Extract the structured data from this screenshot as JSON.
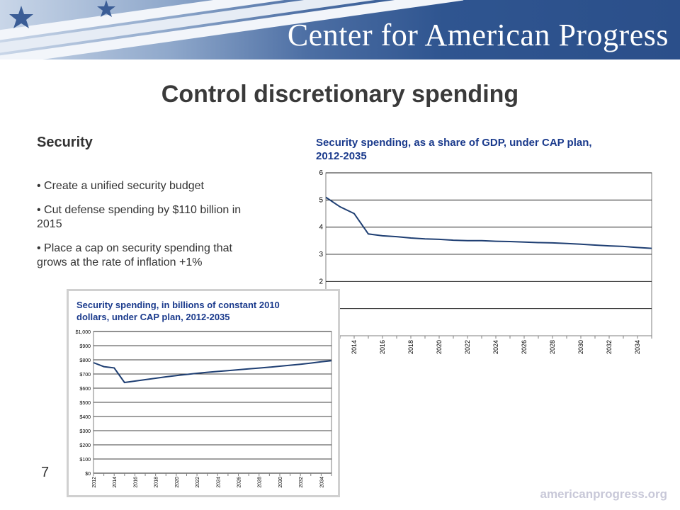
{
  "header": {
    "brand": "Center for American Progress",
    "colors": {
      "primary": "#2b4f8a",
      "accent": "#ffffff"
    }
  },
  "slide": {
    "title": "Control discretionary spending",
    "section": "Security",
    "bullets": [
      "• Create a unified security budget",
      "• Cut defense spending by $110 billion in 2015",
      "• Place a cap on security spending that grows at the rate of inflation +1%"
    ],
    "page_number": "7",
    "site": "americanprogress.org"
  },
  "chart_data": [
    {
      "type": "line",
      "title": "Security spending, as a share of GDP, under CAP plan, 2012-2035",
      "x": [
        2012,
        2013,
        2014,
        2015,
        2016,
        2017,
        2018,
        2019,
        2020,
        2021,
        2022,
        2023,
        2024,
        2025,
        2026,
        2027,
        2028,
        2029,
        2030,
        2031,
        2032,
        2033,
        2034,
        2035
      ],
      "series": [
        {
          "values": [
            5.1,
            4.75,
            4.5,
            3.75,
            3.68,
            3.65,
            3.6,
            3.57,
            3.55,
            3.52,
            3.5,
            3.5,
            3.48,
            3.47,
            3.45,
            3.43,
            3.42,
            3.4,
            3.37,
            3.34,
            3.31,
            3.29,
            3.25,
            3.22
          ]
        }
      ],
      "tick_labels": [
        "2014",
        "2016",
        "2018",
        "2020",
        "2022",
        "2024",
        "2026",
        "2028",
        "2030",
        "2032",
        "2034"
      ],
      "y_ticks": [
        2,
        3,
        4,
        5,
        6
      ],
      "ylim": [
        0,
        6
      ],
      "grid": true,
      "line_color": "#1f3f73"
    },
    {
      "type": "line",
      "title": "Security spending, in billions of constant 2010 dollars, under CAP plan, 2012-2035",
      "x": [
        2012,
        2013,
        2014,
        2015,
        2016,
        2017,
        2018,
        2019,
        2020,
        2021,
        2022,
        2023,
        2024,
        2025,
        2026,
        2027,
        2028,
        2029,
        2030,
        2031,
        2032,
        2033,
        2034,
        2035
      ],
      "series": [
        {
          "values": [
            780,
            752,
            743,
            640,
            650,
            660,
            670,
            680,
            689,
            697,
            705,
            712,
            718,
            724,
            730,
            736,
            742,
            748,
            755,
            762,
            769,
            777,
            786,
            794
          ]
        }
      ],
      "tick_labels": [
        "2012",
        "2014",
        "2016",
        "2018",
        "2020",
        "2022",
        "2024",
        "2026",
        "2028",
        "2030",
        "2032",
        "2034"
      ],
      "y_tick_labels": [
        "$0",
        "$100",
        "$200",
        "$300",
        "$400",
        "$500",
        "$600",
        "$700",
        "$800",
        "$900",
        "$1,000"
      ],
      "ylim": [
        0,
        1000
      ],
      "grid": true,
      "line_color": "#1f3f73"
    }
  ]
}
